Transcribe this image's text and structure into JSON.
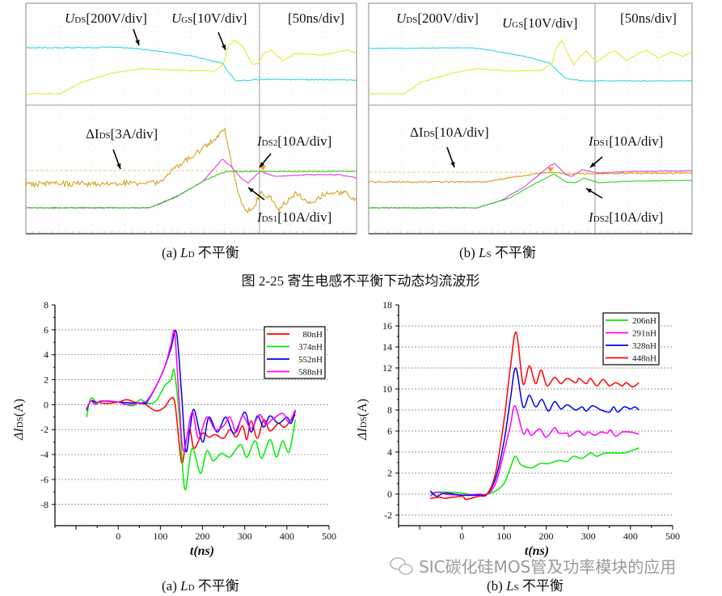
{
  "scope_panels": [
    {
      "caption": {
        "prefix": "(a) ",
        "sym": "L",
        "sub": "D",
        "suffix": " 不平衡"
      },
      "labels": {
        "uds": {
          "sym": "U",
          "sub": "DS",
          "rest": "[200V/div]"
        },
        "ugs": {
          "sym": "U",
          "sub": "GS",
          "rest": "[10V/div]"
        },
        "time": "[50ns/div]",
        "dids": {
          "sym": "ΔI",
          "sub": "DS",
          "rest": "[3A/div]"
        },
        "upper_current": {
          "sym": "I",
          "sub": "DS2",
          "rest": "[10A/div]"
        },
        "lower_current": {
          "sym": "I",
          "sub": "DS1",
          "rest": "[10A/div]"
        }
      }
    },
    {
      "caption": {
        "prefix": "(b) ",
        "sym": "L",
        "sub": "S",
        "suffix": " 不平衡"
      },
      "labels": {
        "uds": {
          "sym": "U",
          "sub": "DS",
          "rest": "[200V/div]"
        },
        "ugs": {
          "sym": "U",
          "sub": "GS",
          "rest": "[10V/div]"
        },
        "time": "[50ns/div]",
        "dids": {
          "sym": "ΔI",
          "sub": "DS",
          "rest": "[10A/div]"
        },
        "upper_current": {
          "sym": "I",
          "sub": "DS1",
          "rest": "[10A/div]"
        },
        "lower_current": {
          "sym": "I",
          "sub": "DS2",
          "rest": "[10A/div]"
        }
      }
    }
  ],
  "trace_colors": {
    "uds": "#33d6e0",
    "ugs": "#e8e838",
    "dids": "#d9a020",
    "ids1": "#e040e0",
    "ids2": "#30d030"
  },
  "figure_caption": "图 2-25  寄生电感不平衡下动态均流波形",
  "watermark": "SIC碳化硅MOS管及功率模块的应用",
  "chart_data": [
    {
      "type": "line",
      "caption": {
        "prefix": "(a) ",
        "sym": "L",
        "sub": "D",
        "suffix": " 不平衡"
      },
      "xlabel": "t(ns)",
      "ylabel": {
        "sym": "ΔI",
        "sub": "DS",
        "rest": "(A)"
      },
      "xlim": [
        -150,
        500
      ],
      "ylim": [
        -9.7,
        8
      ],
      "xticks": [
        0,
        100,
        200,
        300,
        400,
        500
      ],
      "yticks": [
        -8,
        -6,
        -4,
        -2,
        0,
        2,
        4,
        6,
        8
      ],
      "grid": "horizontal dashed",
      "legend": "top-right",
      "series": [
        {
          "name": "80nH",
          "color": "#ff0000",
          "points": [
            [
              -75,
              -0.5
            ],
            [
              -65,
              0.3
            ],
            [
              -50,
              0.2
            ],
            [
              -30,
              0.1
            ],
            [
              0,
              0.2
            ],
            [
              20,
              0.4
            ],
            [
              40,
              0.2
            ],
            [
              60,
              0.1
            ],
            [
              70,
              -0.1
            ],
            [
              90,
              -0.5
            ],
            [
              110,
              -0.2
            ],
            [
              125,
              0.5
            ],
            [
              135,
              0
            ],
            [
              150,
              -4.6
            ],
            [
              160,
              -3
            ],
            [
              170,
              -2
            ],
            [
              180,
              -3.5
            ],
            [
              200,
              -2.3
            ],
            [
              215,
              -2.6
            ],
            [
              230,
              -2.4
            ],
            [
              250,
              -2.7
            ],
            [
              265,
              -2
            ],
            [
              280,
              -2.6
            ],
            [
              295,
              -1.7
            ],
            [
              305,
              -2.8
            ],
            [
              315,
              -1.3
            ],
            [
              330,
              -2.7
            ],
            [
              345,
              -1.2
            ],
            [
              360,
              -2.1
            ],
            [
              380,
              -1.5
            ],
            [
              395,
              -1.8
            ],
            [
              420,
              -0.8
            ]
          ]
        },
        {
          "name": "374nH",
          "color": "#00ee00",
          "points": [
            [
              -75,
              -1
            ],
            [
              -65,
              0.5
            ],
            [
              -50,
              0.2
            ],
            [
              -30,
              0.3
            ],
            [
              0,
              0.2
            ],
            [
              35,
              -0.1
            ],
            [
              52,
              0.4
            ],
            [
              70,
              0.1
            ],
            [
              90,
              0.3
            ],
            [
              110,
              1.5
            ],
            [
              125,
              2
            ],
            [
              133,
              2.7
            ],
            [
              145,
              -1
            ],
            [
              158,
              -6.8
            ],
            [
              175,
              -3.5
            ],
            [
              195,
              -5.5
            ],
            [
              210,
              -3.7
            ],
            [
              225,
              -4.5
            ],
            [
              245,
              -3.9
            ],
            [
              265,
              -4.2
            ],
            [
              290,
              -3.2
            ],
            [
              305,
              -4.2
            ],
            [
              325,
              -2.9
            ],
            [
              340,
              -4.3
            ],
            [
              360,
              -2.8
            ],
            [
              375,
              -4.2
            ],
            [
              390,
              -2.9
            ],
            [
              405,
              -3.8
            ],
            [
              420,
              -1.2
            ]
          ]
        },
        {
          "name": "552nH",
          "color": "#0000ee",
          "points": [
            [
              -75,
              -0.4
            ],
            [
              -65,
              0.3
            ],
            [
              -50,
              0.1
            ],
            [
              -40,
              0.3
            ],
            [
              0,
              0.2
            ],
            [
              60,
              0.1
            ],
            [
              70,
              0.3
            ],
            [
              90,
              1.5
            ],
            [
              110,
              3
            ],
            [
              125,
              4.5
            ],
            [
              138,
              5.8
            ],
            [
              150,
              1
            ],
            [
              160,
              -3.7
            ],
            [
              170,
              -2
            ],
            [
              180,
              -0.4
            ],
            [
              200,
              -3
            ],
            [
              215,
              -1
            ],
            [
              235,
              -2.2
            ],
            [
              255,
              -1
            ],
            [
              275,
              -2.3
            ],
            [
              300,
              -0.6
            ],
            [
              315,
              -2.2
            ],
            [
              330,
              -0.9
            ],
            [
              345,
              -1.8
            ],
            [
              360,
              -0.9
            ],
            [
              380,
              -1.5
            ],
            [
              400,
              -1
            ],
            [
              410,
              -1.5
            ],
            [
              420,
              -0.5
            ]
          ]
        },
        {
          "name": "588nH",
          "color": "#ff00ff",
          "points": [
            [
              -75,
              -0.3
            ],
            [
              -65,
              0.3
            ],
            [
              -55,
              0
            ],
            [
              -40,
              0.3
            ],
            [
              0,
              0.2
            ],
            [
              20,
              0
            ],
            [
              60,
              0.2
            ],
            [
              70,
              0.4
            ],
            [
              90,
              1.5
            ],
            [
              110,
              3
            ],
            [
              125,
              4.8
            ],
            [
              134,
              5.7
            ],
            [
              145,
              0
            ],
            [
              155,
              -3.7
            ],
            [
              175,
              -0.6
            ],
            [
              190,
              -2.7
            ],
            [
              210,
              -1
            ],
            [
              230,
              -2
            ],
            [
              250,
              -1.7
            ],
            [
              265,
              -1
            ],
            [
              280,
              -2.2
            ],
            [
              295,
              -0.9
            ],
            [
              315,
              -1.9
            ],
            [
              335,
              -0.8
            ],
            [
              350,
              -1.6
            ],
            [
              365,
              -1.2
            ],
            [
              390,
              -0.7
            ],
            [
              405,
              -1.4
            ],
            [
              420,
              -0.4
            ]
          ]
        }
      ]
    },
    {
      "type": "line",
      "caption": {
        "prefix": "(b) ",
        "sym": "L",
        "sub": "S",
        "suffix": " 不平衡"
      },
      "xlabel": "t(ns)",
      "ylabel": {
        "sym": "ΔI",
        "sub": "DS",
        "rest": "(A)"
      },
      "xlim": [
        -150,
        500
      ],
      "ylim": [
        -3,
        18
      ],
      "xticks": [
        0,
        100,
        200,
        300,
        400,
        500
      ],
      "yticks": [
        -2,
        0,
        2,
        4,
        6,
        8,
        10,
        12,
        14,
        16,
        18
      ],
      "grid": "horizontal dashed",
      "legend": "top-right",
      "series": [
        {
          "name": "206nH",
          "color": "#00ee00",
          "points": [
            [
              -75,
              0.1
            ],
            [
              -50,
              0.2
            ],
            [
              0,
              0.1
            ],
            [
              30,
              -0.1
            ],
            [
              60,
              0
            ],
            [
              80,
              0.3
            ],
            [
              100,
              1
            ],
            [
              115,
              2.5
            ],
            [
              127,
              3.6
            ],
            [
              140,
              2.8
            ],
            [
              165,
              2.5
            ],
            [
              185,
              2.9
            ],
            [
              205,
              2.9
            ],
            [
              230,
              3.2
            ],
            [
              250,
              3.1
            ],
            [
              265,
              3.6
            ],
            [
              285,
              3.4
            ],
            [
              305,
              3.9
            ],
            [
              320,
              3.6
            ],
            [
              340,
              3.9
            ],
            [
              380,
              3.9
            ],
            [
              400,
              4.1
            ],
            [
              420,
              4.4
            ]
          ]
        },
        {
          "name": "291nH",
          "color": "#ff00ff",
          "points": [
            [
              -75,
              -0.2
            ],
            [
              -60,
              0.2
            ],
            [
              -40,
              0
            ],
            [
              0,
              -0.1
            ],
            [
              40,
              0
            ],
            [
              60,
              0
            ],
            [
              80,
              1
            ],
            [
              100,
              4
            ],
            [
              115,
              6.5
            ],
            [
              126,
              8.4
            ],
            [
              145,
              5.8
            ],
            [
              155,
              6.2
            ],
            [
              165,
              5.6
            ],
            [
              185,
              6.2
            ],
            [
              200,
              5.4
            ],
            [
              220,
              6.3
            ],
            [
              230,
              5.8
            ],
            [
              250,
              5.8
            ],
            [
              255,
              5.5
            ],
            [
              275,
              6
            ],
            [
              290,
              5.6
            ],
            [
              300,
              5.9
            ],
            [
              315,
              5.6
            ],
            [
              330,
              5.9
            ],
            [
              345,
              5.8
            ],
            [
              352,
              6.1
            ],
            [
              365,
              5.5
            ],
            [
              380,
              5.9
            ],
            [
              400,
              5.9
            ],
            [
              420,
              5.7
            ]
          ]
        },
        {
          "name": "328nH",
          "color": "#0000ee",
          "points": [
            [
              -75,
              0.3
            ],
            [
              -60,
              -0.2
            ],
            [
              -40,
              0.1
            ],
            [
              0,
              -0.1
            ],
            [
              40,
              -0.1
            ],
            [
              60,
              0
            ],
            [
              80,
              1.5
            ],
            [
              100,
              5
            ],
            [
              115,
              9
            ],
            [
              128,
              12
            ],
            [
              145,
              8.3
            ],
            [
              160,
              9.4
            ],
            [
              175,
              8.3
            ],
            [
              190,
              9
            ],
            [
              205,
              7.9
            ],
            [
              220,
              8.8
            ],
            [
              235,
              8.1
            ],
            [
              250,
              8.5
            ],
            [
              270,
              8
            ],
            [
              285,
              8.3
            ],
            [
              295,
              7.9
            ],
            [
              310,
              8.4
            ],
            [
              330,
              8
            ],
            [
              350,
              7.8
            ],
            [
              360,
              8.3
            ],
            [
              370,
              7.8
            ],
            [
              385,
              8.3
            ],
            [
              400,
              8.1
            ],
            [
              410,
              8.3
            ],
            [
              420,
              8
            ]
          ]
        },
        {
          "name": "448nH",
          "color": "#ff0000",
          "points": [
            [
              -75,
              -0.4
            ],
            [
              -50,
              -0.3
            ],
            [
              -40,
              -0.4
            ],
            [
              0,
              -0.2
            ],
            [
              10,
              -0.5
            ],
            [
              40,
              -0.2
            ],
            [
              60,
              0
            ],
            [
              80,
              2
            ],
            [
              100,
              7
            ],
            [
              115,
              12
            ],
            [
              129,
              15.4
            ],
            [
              145,
              10.5
            ],
            [
              160,
              12.2
            ],
            [
              175,
              10.5
            ],
            [
              188,
              11.8
            ],
            [
              202,
              10.3
            ],
            [
              220,
              11.1
            ],
            [
              235,
              10.5
            ],
            [
              250,
              11
            ],
            [
              270,
              10.6
            ],
            [
              278,
              11
            ],
            [
              295,
              10.5
            ],
            [
              305,
              11
            ],
            [
              320,
              10.3
            ],
            [
              335,
              10.9
            ],
            [
              350,
              10.3
            ],
            [
              365,
              10.6
            ],
            [
              380,
              10.3
            ],
            [
              390,
              10.6
            ],
            [
              405,
              10.2
            ],
            [
              420,
              10.6
            ]
          ]
        }
      ]
    }
  ]
}
